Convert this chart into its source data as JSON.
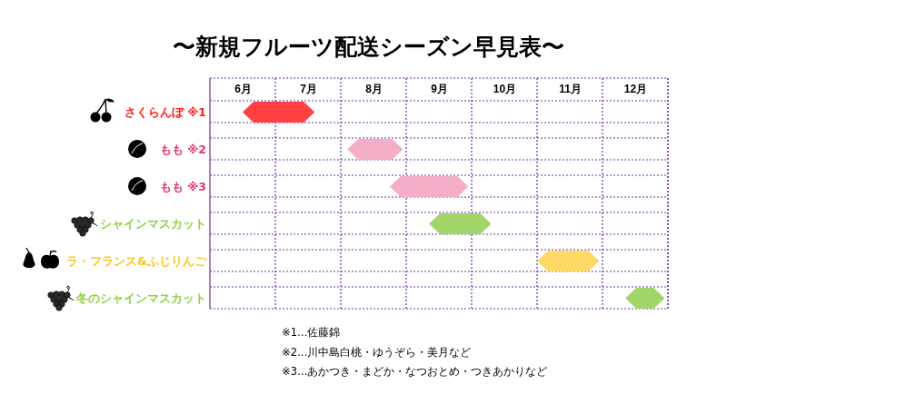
{
  "chart_data": {
    "type": "bar",
    "orientation": "horizontal",
    "title": "〜新規フルーツ配送シーズン早見表〜",
    "categories": [
      "さくらんぼ ※1",
      "もも ※2",
      "もも ※3",
      "シャインマスカット",
      "ラ・フランス&ふじりんご",
      "冬のシャインマスカット"
    ],
    "base": [
      6.5,
      8.1,
      8.75,
      9.35,
      11,
      12.35
    ],
    "values": [
      1.1,
      0.85,
      1.2,
      0.95,
      0.95,
      0.6
    ],
    "colors": [
      "#ff4040",
      "#f4aec8",
      "#f4aec8",
      "#a3d66a",
      "#ffd966",
      "#a3d66a"
    ],
    "xlim": [
      6,
      13
    ],
    "xticks": [
      {
        "value": 6,
        "label": null
      },
      {
        "value": 6.5,
        "label": "6月"
      },
      {
        "value": 7,
        "label": null
      },
      {
        "value": 7.5,
        "label": "7月"
      },
      {
        "value": 8,
        "label": null
      },
      {
        "value": 8.5,
        "label": "8月"
      },
      {
        "value": 9,
        "label": null
      },
      {
        "value": 9.5,
        "label": "9月"
      },
      {
        "value": 10,
        "label": null
      },
      {
        "value": 10.5,
        "label": "10月"
      },
      {
        "value": 11,
        "label": null
      },
      {
        "value": 11.5,
        "label": "11月"
      },
      {
        "value": 12,
        "label": null
      },
      {
        "value": 12.5,
        "label": "12月"
      },
      {
        "value": 13,
        "label": null
      }
    ],
    "grid": true,
    "annotations": [
      "※1…佐藤錦",
      "※2…川中島白桃・ゆうぞら・美月など",
      "※3…あかつき・まどか・なつおとめ・つきあかりなど"
    ]
  }
}
